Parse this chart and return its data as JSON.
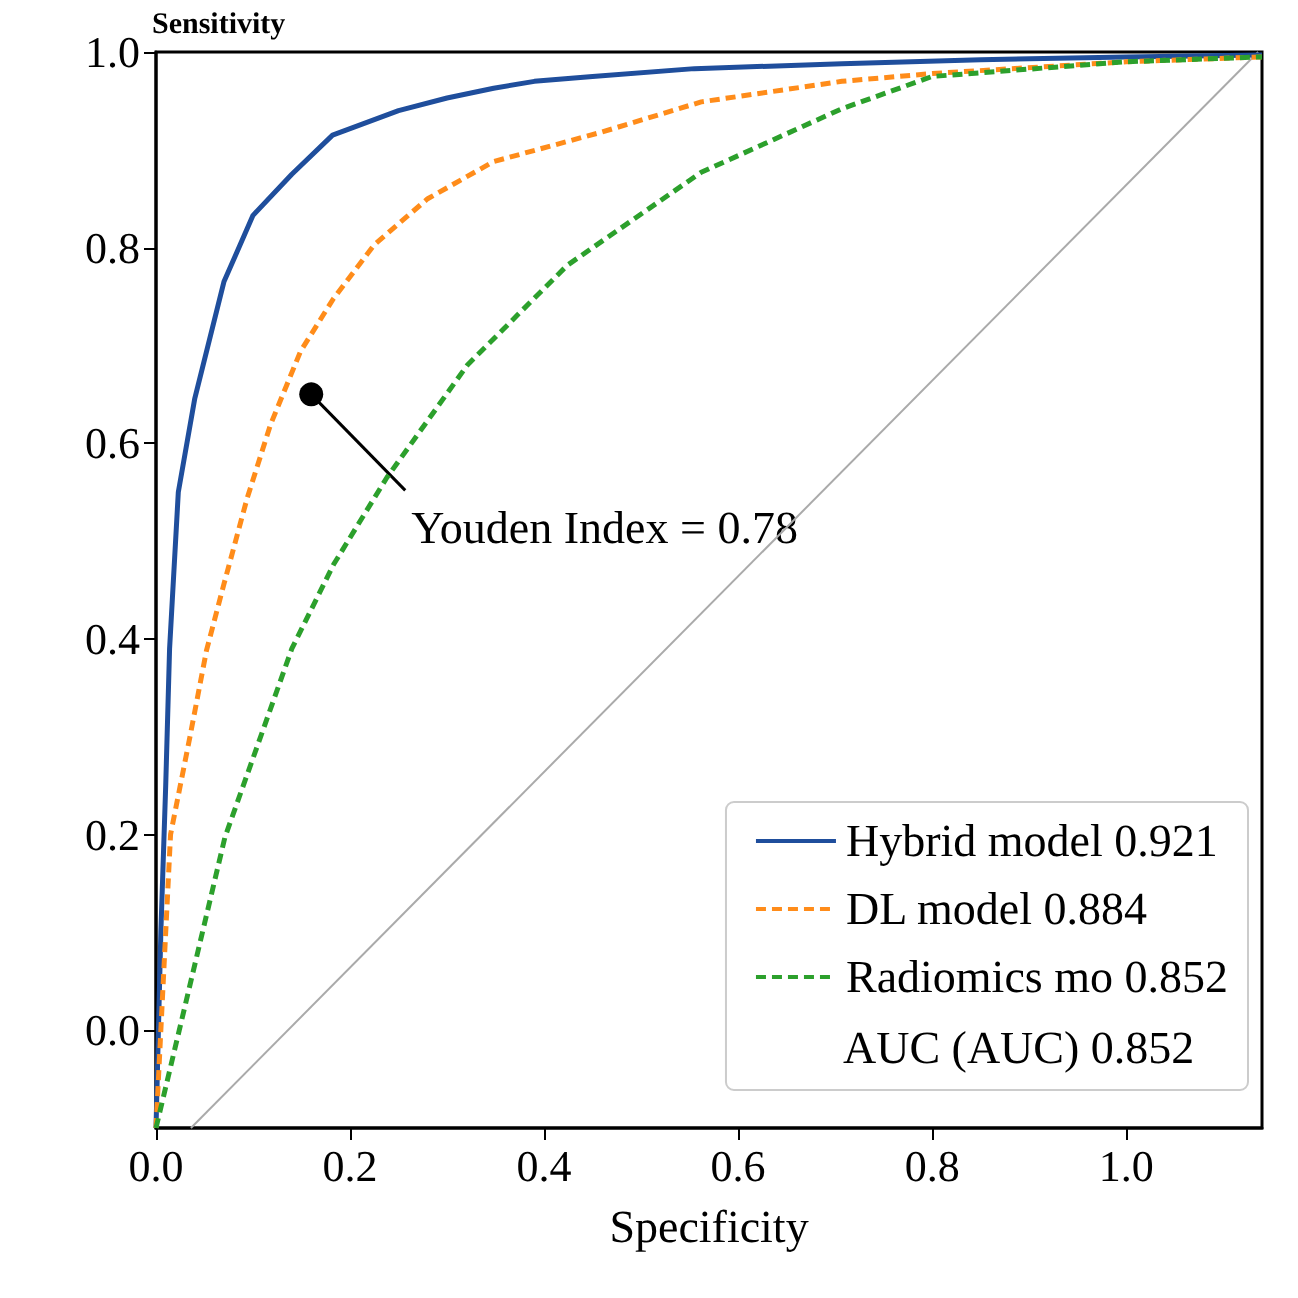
{
  "chart_data": {
    "type": "line",
    "xlabel": "Specificity",
    "ylabel": "Sensitivity",
    "xlim": [
      0,
      1.14
    ],
    "ylim": [
      -0.1,
      1.0
    ],
    "xticks": [
      {
        "value": 0,
        "label": "0.0"
      },
      {
        "value": 0.2,
        "label": "0.2"
      },
      {
        "value": 0.4,
        "label": "0.4"
      },
      {
        "value": 0.6,
        "label": "0.6"
      },
      {
        "value": 0.8,
        "label": "0.8"
      },
      {
        "value": 1,
        "label": "1.0"
      }
    ],
    "yticks": [
      {
        "value": 0,
        "label": "0.0"
      },
      {
        "value": 0.2,
        "label": "0.2"
      },
      {
        "value": 0.4,
        "label": "0.4"
      },
      {
        "value": 0.6,
        "label": "0.6"
      },
      {
        "value": 0.8,
        "label": "0.8"
      },
      {
        "value": 1,
        "label": "1.0"
      }
    ],
    "grid": false,
    "legend": "bottom right",
    "marker": "none",
    "series": [
      {
        "name": "Hybrid model 0.921",
        "color": "#1f4e9c",
        "line_style": "solid",
        "x": [
          0,
          0.005,
          0.01,
          0.014,
          0.023,
          0.04,
          0.07,
          0.1,
          0.14,
          0.182,
          0.25,
          0.3,
          0.348,
          0.39,
          0.45,
          0.555,
          0.707,
          0.85,
          1.0,
          1.14
        ],
        "values": [
          -0.1,
          0.1,
          0.25,
          0.39,
          0.55,
          0.646,
          0.765,
          0.833,
          0.875,
          0.915,
          0.94,
          0.953,
          0.963,
          0.97,
          0.975,
          0.983,
          0.988,
          0.992,
          0.995,
          0.997
        ]
      },
      {
        "name": "DL model 0.884",
        "color": "#ff8c1a",
        "line_style": "dashed",
        "x": [
          0,
          0.005,
          0.015,
          0.035,
          0.052,
          0.07,
          0.094,
          0.118,
          0.149,
          0.183,
          0.225,
          0.28,
          0.348,
          0.459,
          0.562,
          0.707,
          0.8,
          1.0,
          1.14
        ],
        "values": [
          -0.1,
          0.0,
          0.2,
          0.3,
          0.388,
          0.456,
          0.544,
          0.619,
          0.694,
          0.748,
          0.803,
          0.85,
          0.888,
          0.918,
          0.949,
          0.97,
          0.978,
          0.99,
          0.995
        ]
      },
      {
        "name": "Radiomics mo 0.852",
        "color": "#2ca02c",
        "line_style": "dashed",
        "x": [
          0,
          0.024,
          0.071,
          0.14,
          0.183,
          0.238,
          0.321,
          0.424,
          0.562,
          0.707,
          0.8,
          1.0,
          1.14
        ],
        "values": [
          -0.1,
          0.0,
          0.197,
          0.39,
          0.476,
          0.565,
          0.68,
          0.782,
          0.877,
          0.942,
          0.975,
          0.99,
          0.995
        ]
      },
      {
        "color": "#aaaaaa",
        "line_style": "solid",
        "x": [
          0.036,
          1.136
        ],
        "values": [
          -0.1,
          1.0
        ]
      }
    ],
    "annotations": [
      "AUC (AUC) 0.852",
      {
        "text": "Youden Index = 0.78",
        "x": 0.16,
        "y": 0.65
      }
    ]
  }
}
